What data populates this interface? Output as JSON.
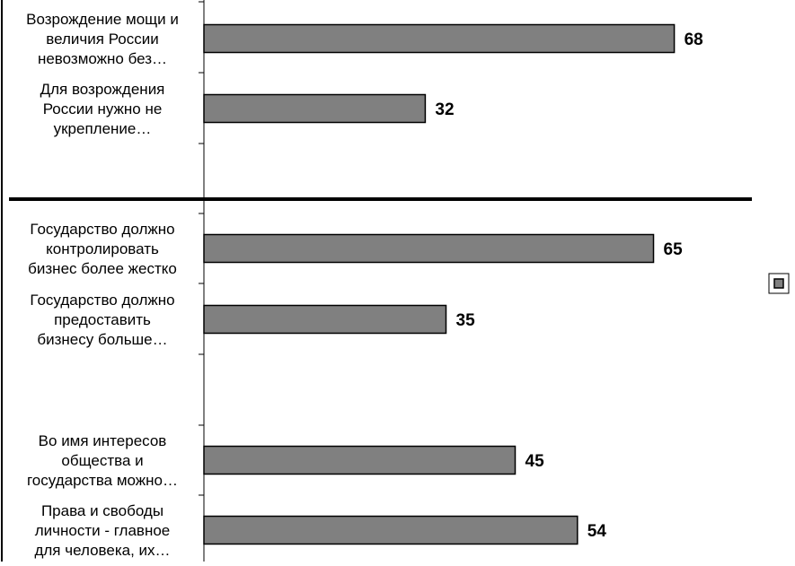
{
  "chart_data": {
    "type": "bar",
    "orientation": "horizontal",
    "title": "",
    "xlabel": "",
    "ylabel": "",
    "xlim": [
      0,
      80
    ],
    "grid": false,
    "categories": [
      [
        "Возрождение мощи и",
        "величия России",
        "невозможно без…"
      ],
      [
        "Для возрождения",
        "России нужно не",
        "укрепление…"
      ],
      [
        "Государство должно",
        "контролировать",
        "бизнес более жестко"
      ],
      [
        "Государство должно",
        "предоставить",
        "бизнесу больше…"
      ],
      [
        "Во имя интересов",
        "общества и",
        "государства можно…"
      ],
      [
        "Права и свободы",
        "личности - главное",
        "для человека, их…"
      ]
    ],
    "values": [
      68,
      32,
      65,
      35,
      45,
      54
    ],
    "series": [
      {
        "values": [
          68,
          32,
          65,
          35,
          45,
          54
        ],
        "color": "#808080"
      }
    ],
    "legend": {
      "placement": "right",
      "entries": [
        {
          "name": "",
          "color": "#808080"
        }
      ]
    },
    "colors": {
      "bar": "#808080",
      "bar_stroke": "#000000",
      "axis": "#000000",
      "background": "#ffffff"
    }
  }
}
